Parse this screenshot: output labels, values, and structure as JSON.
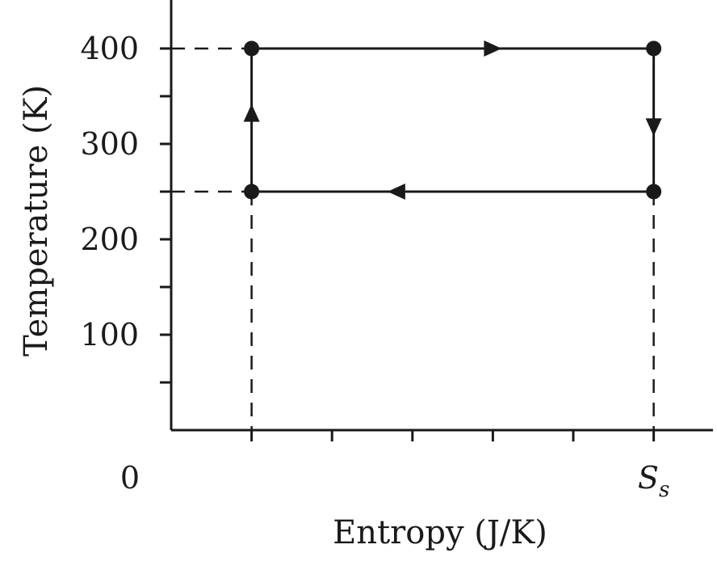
{
  "chart_data": {
    "type": "line",
    "title": "",
    "xlabel": "Entropy (J/K)",
    "ylabel": "Temperature (K)",
    "ylim": [
      0,
      450
    ],
    "y_ticks": [
      100,
      200,
      300,
      400
    ],
    "y_minor_ticks": [
      50,
      150,
      250,
      350
    ],
    "x_ticks": [
      1,
      2,
      3,
      4,
      5,
      6
    ],
    "x_tick_labels": [
      {
        "x": 0,
        "text": "0"
      },
      {
        "x": 6,
        "text": "S",
        "subscript": "s"
      }
    ],
    "xlim": [
      0,
      6.7
    ],
    "grid": false,
    "series": [
      {
        "points": [
          {
            "x": 1,
            "y": 250
          },
          {
            "x": 1,
            "y": 400
          },
          {
            "x": 6,
            "y": 400
          },
          {
            "x": 6,
            "y": 250
          },
          {
            "x": 1,
            "y": 250
          }
        ],
        "closed": true,
        "markers": "filled-circle",
        "arrows": "clockwise",
        "color": "#1a1a1a"
      }
    ],
    "guide_lines": [
      {
        "from": {
          "x": 0,
          "y": 400
        },
        "to": {
          "x": 1,
          "y": 400
        },
        "style": "dashed"
      },
      {
        "from": {
          "x": 0,
          "y": 250
        },
        "to": {
          "x": 1,
          "y": 250
        },
        "style": "dashed"
      },
      {
        "from": {
          "x": 1,
          "y": 250
        },
        "to": {
          "x": 1,
          "y": 0
        },
        "style": "dashed"
      },
      {
        "from": {
          "x": 6,
          "y": 250
        },
        "to": {
          "x": 6,
          "y": 0
        },
        "style": "dashed"
      }
    ]
  }
}
